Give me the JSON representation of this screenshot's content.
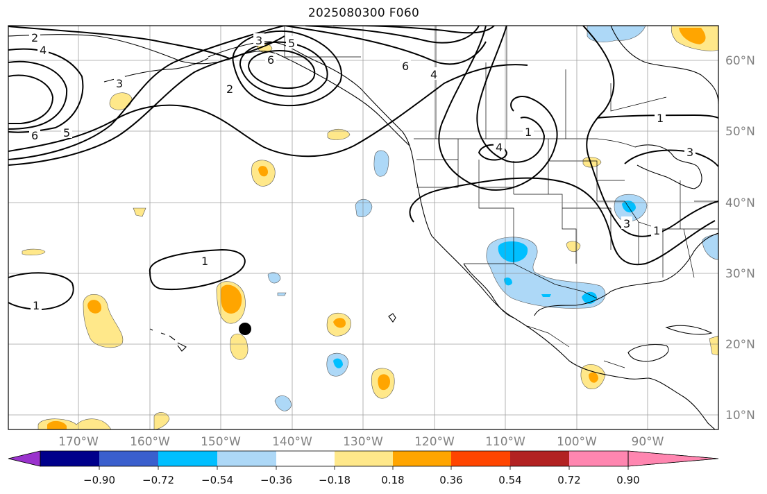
{
  "title": "2025080300 F060",
  "lat_labels": [
    "60°N",
    "50°N",
    "40°N",
    "30°N",
    "20°N",
    "10°N"
  ],
  "lon_labels": [
    "170°W",
    "160°W",
    "150°W",
    "140°W",
    "130°W",
    "120°W",
    "110°W",
    "100°W",
    "90°W"
  ],
  "colorbar": {
    "ticks": [
      "−0.90",
      "−0.72",
      "−0.54",
      "−0.36",
      "−0.18",
      "0.18",
      "0.36",
      "0.54",
      "0.72",
      "0.90"
    ],
    "colors": [
      "#9a32cd",
      "#00008b",
      "#3a5fcd",
      "#00bfff",
      "#add8f7",
      "#ffffff",
      "#ffe88a",
      "#ffa500",
      "#ff4500",
      "#b22222",
      "#ff86b0"
    ]
  },
  "contour_labels": [
    "2",
    "4",
    "6",
    "5",
    "3",
    "2",
    "3",
    "6",
    "5",
    "6",
    "4",
    "1",
    "1",
    "4",
    "3",
    "1",
    "1",
    "1",
    "3"
  ]
}
